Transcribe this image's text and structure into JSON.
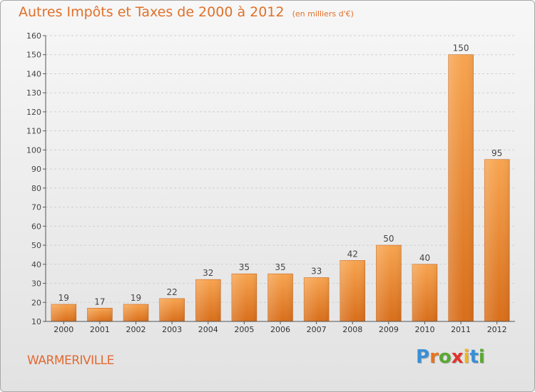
{
  "title": "Autres Impôts et Taxes de 2000 à 2012",
  "subtitle": "(en milliers d'€)",
  "commune": "WARMERIVILLE",
  "logo": {
    "letters": [
      "P",
      "r",
      "o",
      "x",
      "i",
      "t",
      "i"
    ],
    "colors": [
      "#3a8fd6",
      "#e8741e",
      "#5aa832",
      "#e0342c",
      "#f0b41c",
      "#3a8fd6",
      "#5aa832"
    ]
  },
  "chart_data": {
    "type": "bar",
    "title": "Autres Impôts et Taxes de 2000 à 2012",
    "subtitle": "(en milliers d'€)",
    "categories": [
      "2000",
      "2001",
      "2002",
      "2003",
      "2004",
      "2005",
      "2006",
      "2007",
      "2008",
      "2009",
      "2010",
      "2011",
      "2012"
    ],
    "values": [
      19,
      17,
      19,
      22,
      32,
      35,
      35,
      33,
      42,
      50,
      40,
      150,
      95
    ],
    "ylim": [
      10,
      160
    ],
    "yticks": [
      10,
      20,
      30,
      40,
      50,
      60,
      70,
      80,
      90,
      100,
      110,
      120,
      130,
      140,
      150,
      160
    ],
    "grid": true,
    "bar_color": "#ee8a36"
  }
}
